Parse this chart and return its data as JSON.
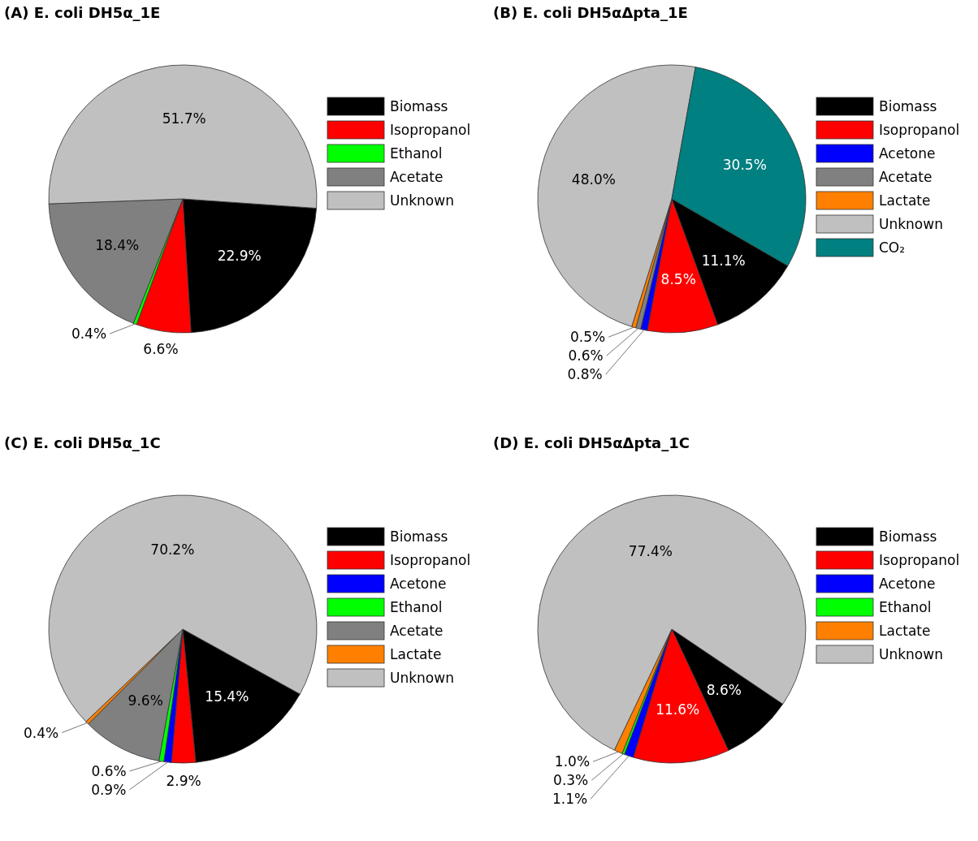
{
  "chart_data": [
    {
      "type": "pie",
      "title": "(A)  E. coli DH5α_1E",
      "legend": "right",
      "categories": [
        "Biomass",
        "Isopropanol",
        "Ethanol",
        "Acetate",
        "Unknown"
      ],
      "values": [
        22.9,
        6.6,
        0.4,
        18.4,
        51.7
      ],
      "value_labels": [
        "22.9%",
        "6.6%",
        "0.4%",
        "18.4%",
        "51.7%"
      ],
      "colors": [
        "#000000",
        "#ff0000",
        "#00ff00",
        "#808080",
        "#c0c0c0"
      ]
    },
    {
      "type": "pie",
      "title": "(B)  E. coli DH5αΔpta_1E",
      "legend": "right",
      "categories": [
        "Biomass",
        "Isopropanol",
        "Acetone",
        "Acetate",
        "Lactate",
        "Unknown",
        "CO₂"
      ],
      "values": [
        11.1,
        8.5,
        0.8,
        0.6,
        0.5,
        48.0,
        30.5
      ],
      "value_labels": [
        "11.1%",
        "8.5%",
        "0.8%",
        "0.6%",
        "0.5%",
        "48.0%",
        "30.5%"
      ],
      "colors": [
        "#000000",
        "#ff0000",
        "#0000ff",
        "#808080",
        "#ff8000",
        "#c0c0c0",
        "#008080"
      ]
    },
    {
      "type": "pie",
      "title": "(C)  E. coli DH5α_1C",
      "legend": "right",
      "categories": [
        "Biomass",
        "Isopropanol",
        "Acetone",
        "Ethanol",
        "Acetate",
        "Lactate",
        "Unknown"
      ],
      "values": [
        15.4,
        2.9,
        0.9,
        0.6,
        9.6,
        0.4,
        70.2
      ],
      "value_labels": [
        "15.4%",
        "2.9%",
        "0.9%",
        "0.6%",
        "9.6%",
        "0.4%",
        "70.2%"
      ],
      "colors": [
        "#000000",
        "#ff0000",
        "#0000ff",
        "#00ff00",
        "#808080",
        "#ff8000",
        "#c0c0c0"
      ]
    },
    {
      "type": "pie",
      "title": "(D)  E. coli DH5αΔpta_1C",
      "legend": "right",
      "categories": [
        "Biomass",
        "Isopropanol",
        "Acetone",
        "Ethanol",
        "Lactate",
        "Unknown"
      ],
      "values": [
        8.6,
        11.6,
        1.1,
        0.3,
        1.0,
        77.4
      ],
      "value_labels": [
        "8.6%",
        "11.6%",
        "1.1%",
        "0.3%",
        "1.0%",
        "77.4%"
      ],
      "colors": [
        "#000000",
        "#ff0000",
        "#0000ff",
        "#00ff00",
        "#ff8000",
        "#c0c0c0"
      ]
    }
  ]
}
